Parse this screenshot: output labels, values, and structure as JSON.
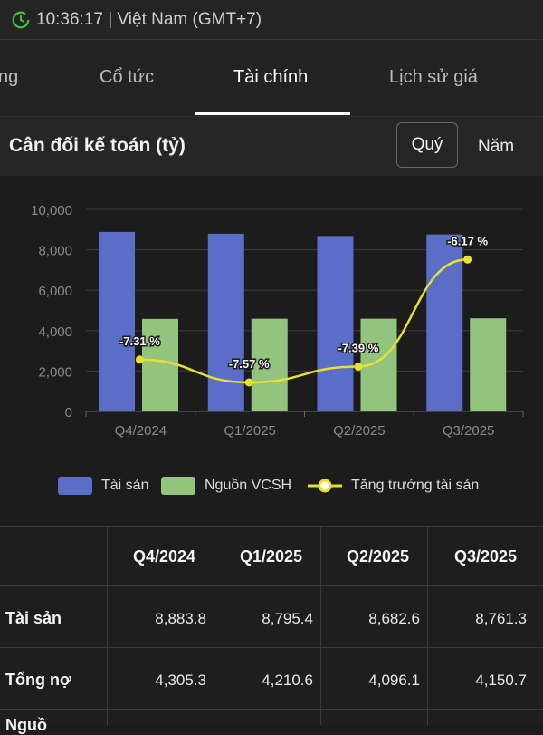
{
  "status": {
    "time_text": "10:36:17 | Việt Nam (GMT+7)"
  },
  "tabs": [
    {
      "label": "ng",
      "active": false
    },
    {
      "label": "Cổ tức",
      "active": false
    },
    {
      "label": "Tài chính",
      "active": true
    },
    {
      "label": "Lịch sử giá",
      "active": false
    }
  ],
  "section": {
    "title": "Cân đối kế toán (tỷ)",
    "period_options": [
      "Quý",
      "Năm"
    ],
    "selected_period": "Quý"
  },
  "colors": {
    "assets": "#5b6ec7",
    "equity": "#93c47d",
    "growth": "#e6e030"
  },
  "chart_data": {
    "type": "bar",
    "categories": [
      "Q4/2024",
      "Q1/2025",
      "Q2/2025",
      "Q3/2025"
    ],
    "series": [
      {
        "name": "Tài sản",
        "type": "bar",
        "values": [
          8883.8,
          8795.4,
          8682.6,
          8761.3
        ]
      },
      {
        "name": "Nguồn VCSH",
        "type": "bar",
        "values": [
          4580,
          4590,
          4590,
          4610
        ]
      },
      {
        "name": "Tăng trưởng tài sản",
        "type": "line",
        "values": [
          -7.31,
          -7.57,
          -7.39,
          -6.17
        ],
        "labels": [
          "-7.31 %",
          "-7.57 %",
          "-7.39 %",
          "-6.17 %"
        ]
      }
    ],
    "yticks": [
      "0",
      "2,000",
      "4,000",
      "6,000",
      "8,000",
      "10,000"
    ],
    "ylim": [
      0,
      10000
    ],
    "growth_ylim": [
      -7.9,
      -5.6
    ],
    "legend_position": "bottom",
    "grid": true
  },
  "table": {
    "columns": [
      "Q4/2024",
      "Q1/2025",
      "Q2/2025",
      "Q3/2025"
    ],
    "rows": [
      {
        "label": "Tài sản",
        "values": [
          "8,883.8",
          "8,795.4",
          "8,682.6",
          "8,761.3"
        ]
      },
      {
        "label": "Tổng nợ",
        "values": [
          "4,305.3",
          "4,210.6",
          "4,096.1",
          "4,150.7"
        ]
      },
      {
        "label": "Nguồ",
        "values": [
          "",
          "",
          "",
          ""
        ]
      }
    ]
  }
}
